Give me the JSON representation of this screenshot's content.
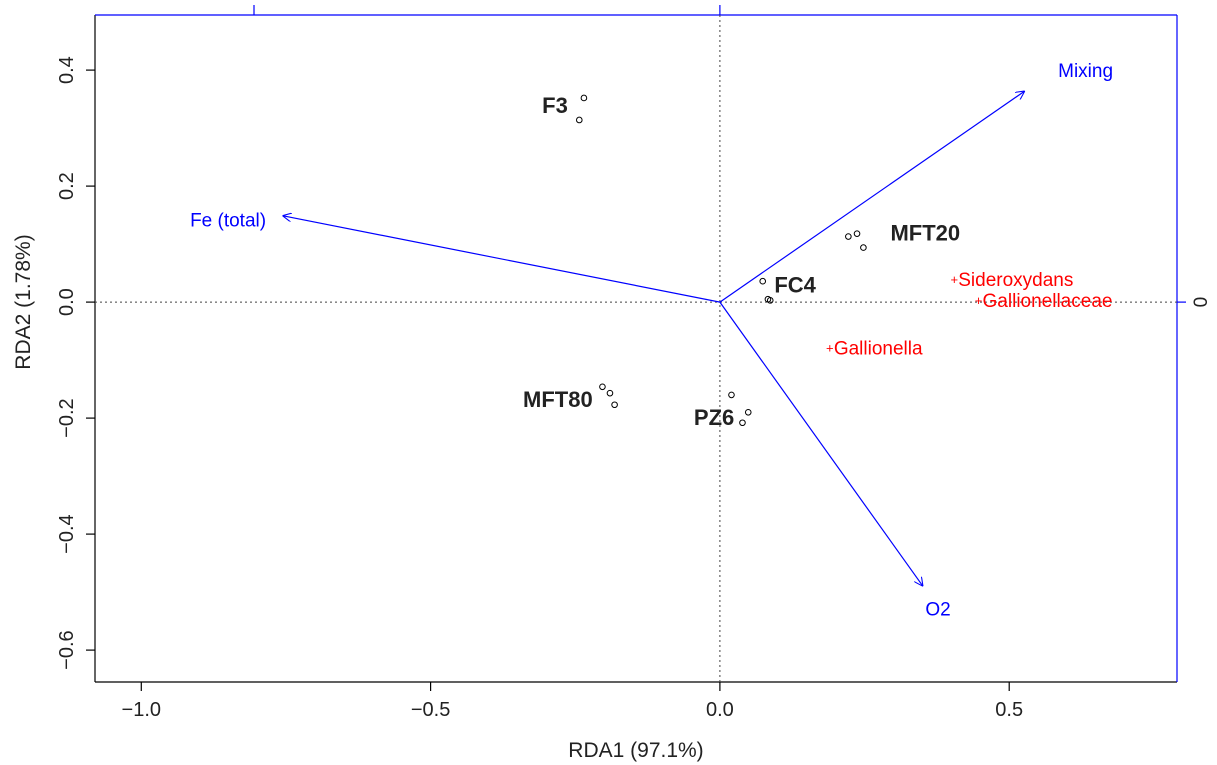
{
  "chart_data": {
    "type": "scatter",
    "subtype": "rda-triplot",
    "xlabel": "RDA1 (97.1%)",
    "ylabel": "RDA2 (1.78%)",
    "xlim": [
      -1.08,
      0.79
    ],
    "ylim": [
      -0.655,
      0.495
    ],
    "x_ticks": [
      -1.0,
      -0.5,
      0.0,
      0.5
    ],
    "x_tick_labels": [
      "−1.0",
      "−0.5",
      "0.0",
      "0.5"
    ],
    "y_ticks": [
      0.4,
      0.2,
      0.0,
      -0.2,
      -0.4,
      -0.6
    ],
    "y_tick_labels": [
      "0.4",
      "0.2",
      "0.0",
      "−0.2",
      "−0.4",
      "−0.6"
    ],
    "right_axis_tick_label": "0",
    "grid": false,
    "site_color": "#000000",
    "arrow_color": "#0000ff",
    "species_color": "#ff0000",
    "sites": [
      {
        "group": "F3",
        "points": [
          [
            -0.235,
            0.352
          ],
          [
            -0.243,
            0.314
          ]
        ],
        "label_at": [
          -0.285,
          0.34
        ]
      },
      {
        "group": "MFT20",
        "points": [
          [
            0.222,
            0.113
          ],
          [
            0.237,
            0.118
          ],
          [
            0.248,
            0.094
          ]
        ],
        "label_at": [
          0.355,
          0.12
        ]
      },
      {
        "group": "FC4",
        "points": [
          [
            0.074,
            0.036
          ],
          [
            0.083,
            0.005
          ],
          [
            0.087,
            0.003
          ]
        ],
        "label_at": [
          0.13,
          0.03
        ]
      },
      {
        "group": "MFT80",
        "points": [
          [
            -0.203,
            -0.146
          ],
          [
            -0.19,
            -0.157
          ],
          [
            -0.182,
            -0.177
          ]
        ],
        "label_at": [
          -0.28,
          -0.167
        ]
      },
      {
        "group": "PZ6",
        "points": [
          [
            0.02,
            -0.16
          ],
          [
            0.049,
            -0.19
          ],
          [
            0.039,
            -0.208
          ]
        ],
        "label_at": [
          -0.01,
          -0.198
        ]
      }
    ],
    "biplot_arrows": [
      {
        "name": "Mixing",
        "x": 0.527,
        "y": 0.364,
        "label_at": [
          0.632,
          0.4
        ]
      },
      {
        "name": "Fe (total)",
        "x": -0.756,
        "y": 0.149,
        "label_at": [
          -0.85,
          0.142
        ]
      },
      {
        "name": "O2",
        "x": 0.351,
        "y": -0.49,
        "label_at": [
          0.377,
          -0.528
        ]
      }
    ],
    "species": [
      {
        "name": "Sideroxydans",
        "x": 0.405,
        "y": 0.038
      },
      {
        "name": "Gallionellaceae",
        "x": 0.447,
        "y": 0.002
      },
      {
        "name": "Gallionella",
        "x": 0.19,
        "y": -0.08
      }
    ]
  }
}
